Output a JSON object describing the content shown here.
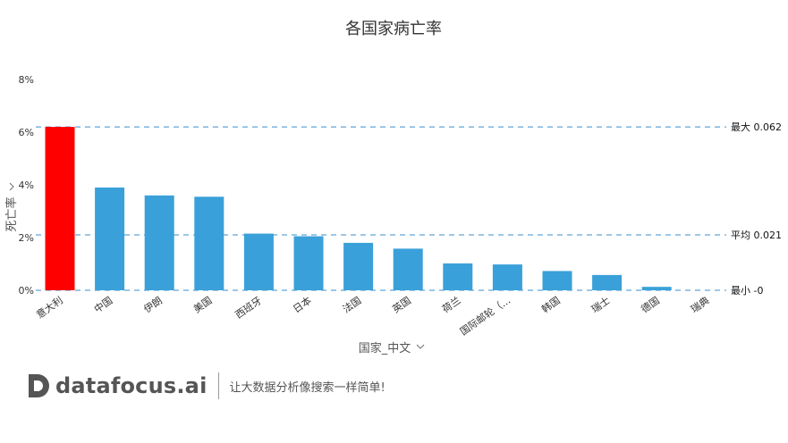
{
  "chart_data": {
    "type": "bar",
    "title": "各国家病亡率",
    "xlabel": "国家_中文",
    "ylabel": "死亡率",
    "categories": [
      "意大利",
      "中国",
      "伊朗",
      "美国",
      "西班牙",
      "日本",
      "法国",
      "英国",
      "荷兰",
      "国际邮轮（...",
      "韩国",
      "瑞士",
      "德国",
      "瑞典"
    ],
    "values": [
      0.062,
      0.039,
      0.036,
      0.0355,
      0.0215,
      0.0205,
      0.018,
      0.0158,
      0.0102,
      0.0098,
      0.0073,
      0.0058,
      0.0013,
      0
    ],
    "highlight_index": 0,
    "ylim": [
      0,
      0.08
    ],
    "yticks": [
      0,
      0.02,
      0.04,
      0.06,
      0.08
    ],
    "ytick_labels": [
      "0%",
      "2%",
      "4%",
      "6%",
      "8%"
    ],
    "colors": {
      "bar": "#3aa0d9",
      "highlight": "#ff0000",
      "refline": "#3a8fcf"
    },
    "reference_lines": [
      {
        "label": "最大 0.062",
        "value": 0.062
      },
      {
        "label": "平均 0.021",
        "value": 0.021
      },
      {
        "label": "最小 -0",
        "value": 0
      }
    ],
    "grid": false,
    "legend": "none"
  },
  "axis_dropdown_icon": "chevron-down-icon",
  "footer": {
    "logo_text": "datafocus.ai",
    "slogan": "让大数据分析像搜索一样简单!"
  }
}
